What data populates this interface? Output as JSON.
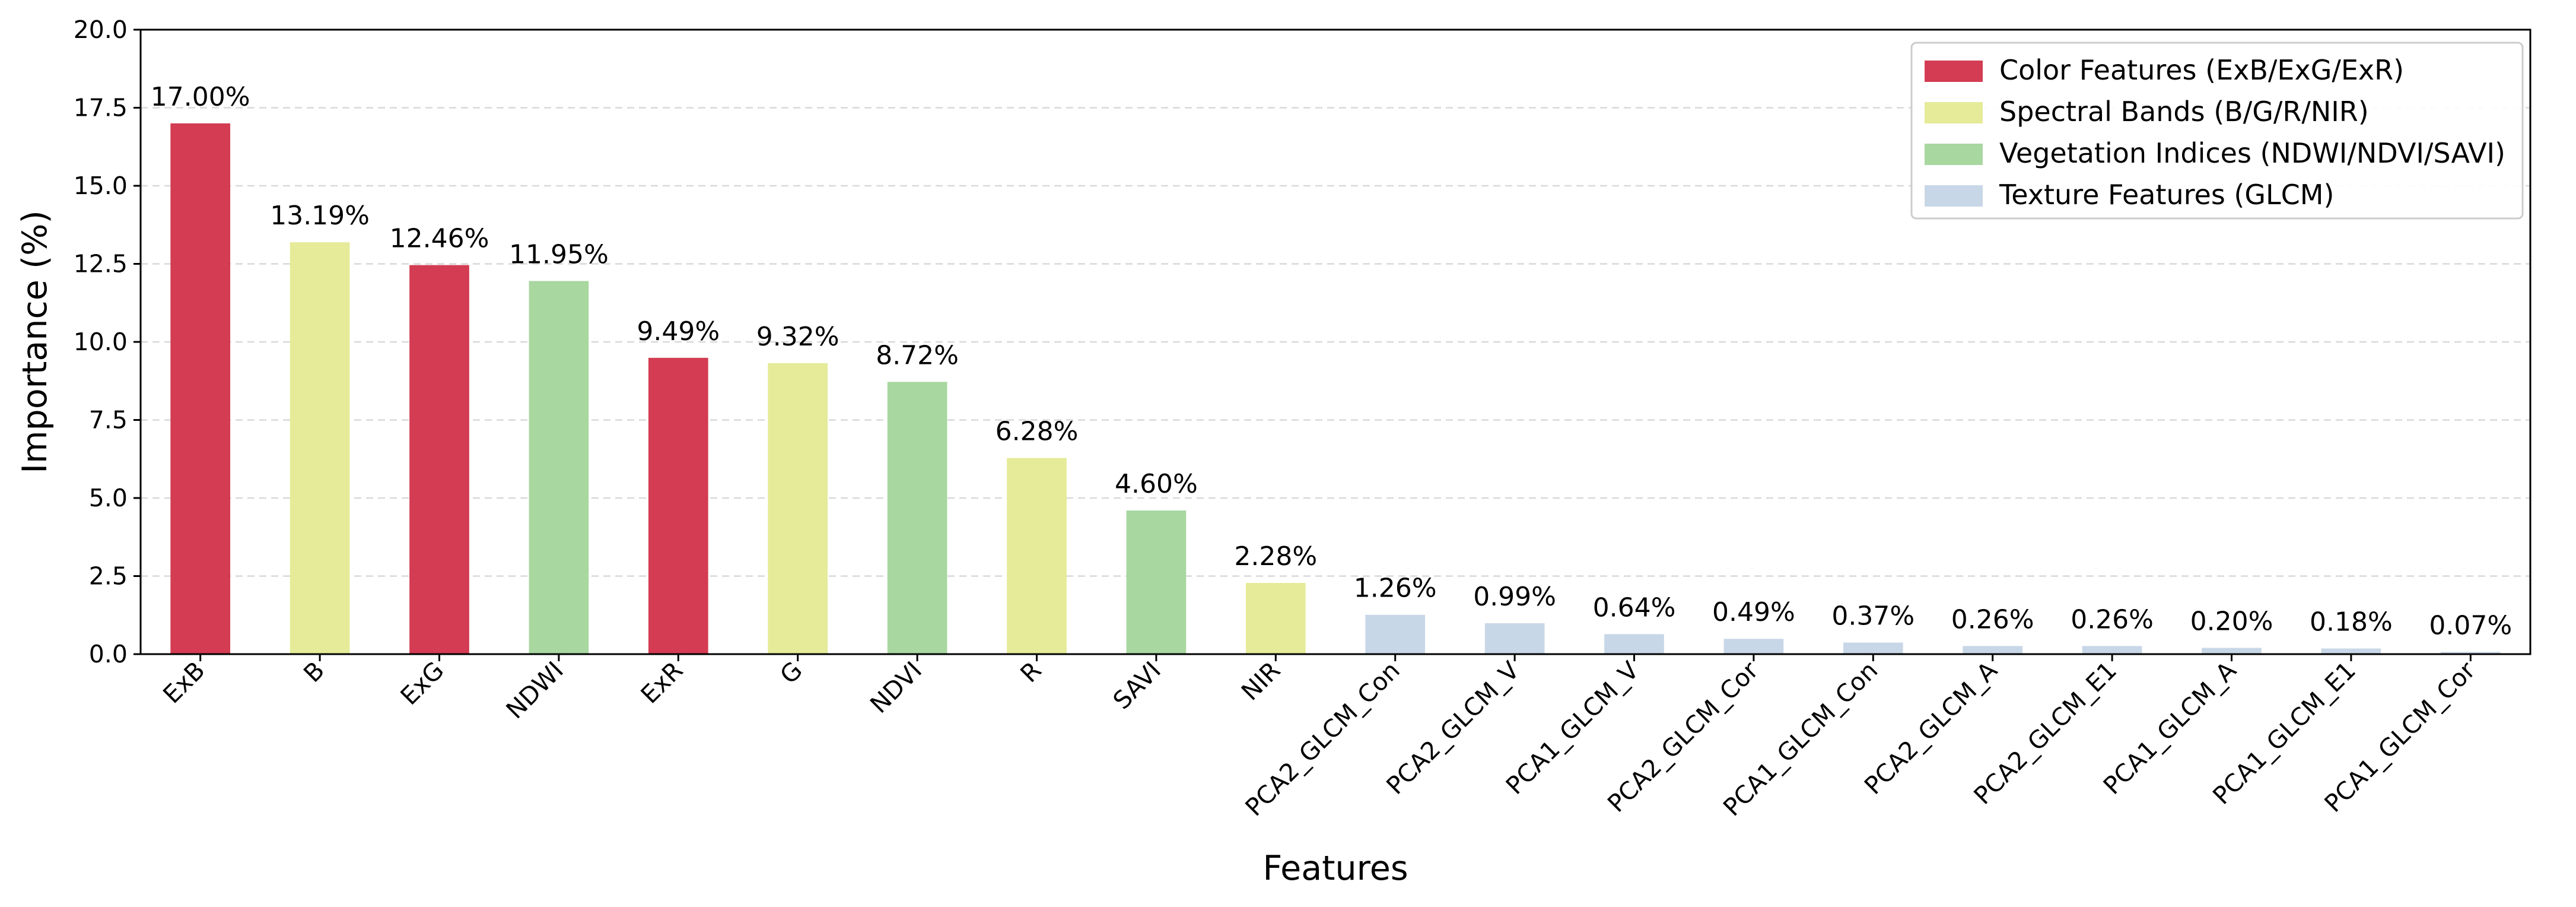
{
  "chart_data": {
    "type": "bar",
    "title": "",
    "xlabel": "Features",
    "ylabel": "Importance (%)",
    "ylim": [
      0,
      20
    ],
    "yticks": [
      "0.0",
      "2.5",
      "5.0",
      "7.5",
      "10.0",
      "12.5",
      "15.0",
      "17.5",
      "20.0"
    ],
    "grid": "horizontal dashed",
    "legend_position": "top-right",
    "categories": [
      "ExB",
      "B",
      "ExG",
      "NDWI",
      "ExR",
      "G",
      "NDVI",
      "R",
      "SAVI",
      "NIR",
      "PCA2_GLCM_Con",
      "PCA2_GLCM_V",
      "PCA1_GLCM_V",
      "PCA2_GLCM_Cor",
      "PCA1_GLCM_Con",
      "PCA2_GLCM_A",
      "PCA2_GLCM_E1",
      "PCA1_GLCM_A",
      "PCA1_GLCM_E1",
      "PCA1_GLCM_Cor"
    ],
    "values": [
      17.0,
      13.19,
      12.46,
      11.95,
      9.49,
      9.32,
      8.72,
      6.28,
      4.6,
      2.28,
      1.26,
      0.99,
      0.64,
      0.49,
      0.37,
      0.26,
      0.26,
      0.2,
      0.18,
      0.07
    ],
    "value_labels": [
      "17.00%",
      "13.19%",
      "12.46%",
      "11.95%",
      "9.49%",
      "9.32%",
      "8.72%",
      "6.28%",
      "4.60%",
      "2.28%",
      "1.26%",
      "0.99%",
      "0.64%",
      "0.49%",
      "0.37%",
      "0.26%",
      "0.26%",
      "0.20%",
      "0.18%",
      "0.07%"
    ],
    "groups": [
      "color",
      "spectral",
      "color",
      "vegetation",
      "color",
      "spectral",
      "vegetation",
      "spectral",
      "vegetation",
      "spectral",
      "texture",
      "texture",
      "texture",
      "texture",
      "texture",
      "texture",
      "texture",
      "texture",
      "texture",
      "texture"
    ],
    "legend": [
      {
        "key": "color",
        "label": "Color Features (ExB/ExG/ExR)",
        "color": "#d33c52"
      },
      {
        "key": "spectral",
        "label": "Spectral Bands (B/G/R/NIR)",
        "color": "#e5eb98"
      },
      {
        "key": "vegetation",
        "label": "Vegetation Indices (NDWI/NDVI/SAVI)",
        "color": "#a8d7a0"
      },
      {
        "key": "texture",
        "label": "Texture Features (GLCM)",
        "color": "#c8d7e7"
      }
    ]
  }
}
